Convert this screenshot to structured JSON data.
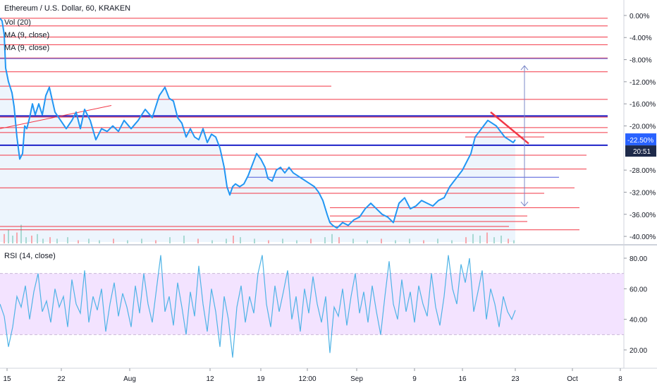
{
  "legend": {
    "title": "Ethereum / U.S. Dollar, 60, KRAKEN",
    "vol": "Vol (20)",
    "ma1": "MA (9, close)",
    "ma2": "MA (9, close)",
    "rsi": "RSI (14, close)"
  },
  "colors": {
    "price": "#2196f3",
    "hline": "#f23645",
    "blueline": "#1e22c8",
    "thinblue": "#4d58d8",
    "rsi": "#4fb3e6",
    "rsi_band": "#f3e3ff",
    "measure": "#7b88c8",
    "badge": "#2962ff"
  },
  "chart_data": [
    {
      "type": "line",
      "title": "Ethereum / U.S. Dollar, 60, KRAKEN",
      "x_ticks": [
        "15",
        "22",
        "Aug",
        "12",
        "19",
        "12:00",
        "Sep",
        "9",
        "16",
        "23",
        "Oct",
        "8"
      ],
      "y_ticks": [
        "0.00%",
        "-4.00%",
        "-8.00%",
        "-12.00%",
        "-16.00%",
        "-20.00%",
        "-24.00%",
        "-28.00%",
        "-32.00%",
        "-36.00%",
        "-40.00%"
      ],
      "ylim": [
        -40.5,
        0.5
      ],
      "y_unit": "%",
      "current_value_label": "-22.50%",
      "countdown_label": "20:51",
      "series": [
        {
          "key": "price",
          "x": [
            0,
            3,
            6,
            8,
            12,
            17,
            20,
            24,
            28,
            32,
            35,
            38,
            42,
            46,
            50,
            55,
            60,
            65,
            70,
            78,
            86,
            94,
            102,
            108,
            114,
            120,
            128,
            136,
            144,
            152,
            160,
            168,
            176,
            186,
            196,
            206,
            216,
            226,
            234,
            240,
            246,
            252,
            258,
            264,
            270,
            276,
            282,
            288,
            294,
            300,
            306,
            312,
            318,
            322,
            326,
            330,
            334,
            340,
            346,
            352,
            358,
            364,
            370,
            376,
            380,
            386,
            392,
            398,
            404,
            410,
            416,
            422,
            428,
            434,
            440,
            446,
            452,
            458,
            464,
            468,
            472,
            478,
            486,
            494,
            502,
            510,
            518,
            526,
            534,
            542,
            550,
            558,
            566,
            574,
            582,
            590,
            598,
            606,
            614,
            622,
            630,
            638,
            644,
            650,
            656,
            662,
            668,
            674,
            680,
            686,
            692,
            698,
            704,
            710,
            716,
            722,
            728,
            731
          ],
          "y": [
            -0.5,
            -1.0,
            -3.5,
            -9.5,
            -12.0,
            -14.0,
            -16.5,
            -22.0,
            -26.0,
            -25.0,
            -20.0,
            -20.5,
            -18.5,
            -16.0,
            -18.0,
            -16.0,
            -18.0,
            -14.5,
            -13.0,
            -17.5,
            -19.0,
            -20.5,
            -19.0,
            -17.5,
            -20.5,
            -17.0,
            -19.0,
            -22.5,
            -20.5,
            -21.0,
            -20.0,
            -21.0,
            -19.0,
            -20.5,
            -19.0,
            -17.0,
            -18.5,
            -14.5,
            -13.0,
            -15.0,
            -15.5,
            -18.5,
            -19.5,
            -22.0,
            -20.5,
            -22.0,
            -22.5,
            -20.5,
            -23.0,
            -21.5,
            -22.0,
            -24.0,
            -27.5,
            -31.0,
            -32.5,
            -31.0,
            -30.5,
            -31.0,
            -30.5,
            -29.0,
            -27.0,
            -25.0,
            -26.0,
            -27.5,
            -29.5,
            -30.0,
            -28.0,
            -27.5,
            -28.5,
            -27.5,
            -28.5,
            -29.0,
            -29.5,
            -30.0,
            -30.5,
            -31.0,
            -32.0,
            -33.5,
            -36.0,
            -37.5,
            -38.0,
            -38.5,
            -37.5,
            -38.0,
            -37.0,
            -36.5,
            -35.0,
            -34.0,
            -35.0,
            -36.0,
            -36.5,
            -37.5,
            -34.0,
            -33.0,
            -35.0,
            -34.5,
            -33.5,
            -34.0,
            -34.5,
            -33.5,
            -33.0,
            -31.0,
            -30.0,
            -29.0,
            -28.0,
            -26.5,
            -25.0,
            -22.0,
            -21.0,
            -20.0,
            -19.0,
            -19.5,
            -20.0,
            -21.0,
            -22.0,
            -22.5,
            -23.0,
            -22.5
          ]
        },
        {
          "key": "volume",
          "x": [
            5,
            11,
            17,
            23,
            29,
            36,
            44,
            52,
            60,
            70,
            80,
            95,
            110,
            125,
            140,
            160,
            180,
            200,
            220,
            240,
            260,
            280,
            300,
            320,
            330,
            340,
            360,
            380,
            400,
            420,
            440,
            460,
            470,
            480,
            500,
            520,
            540,
            560,
            580,
            600,
            620,
            640,
            660,
            670,
            680,
            690,
            700,
            710,
            720,
            728
          ],
          "y": [
            6,
            9,
            5,
            7,
            12,
            4,
            5,
            6,
            3,
            4,
            3,
            4,
            2,
            3,
            2,
            3,
            2,
            3,
            2,
            4,
            5,
            3,
            2,
            3,
            5,
            4,
            3,
            2,
            3,
            2,
            3,
            4,
            6,
            4,
            3,
            2,
            3,
            2,
            3,
            2,
            3,
            2,
            4,
            6,
            5,
            7,
            4,
            5,
            3,
            2
          ]
        }
      ],
      "horizontal_lines": [
        -0.5,
        -1.9,
        -3.9,
        -5.3,
        -7.7,
        -10.2,
        -12.8,
        -15.2,
        -18.4,
        -20.3,
        -21.2,
        -22.0,
        -25.3,
        -27.8,
        -31.2,
        -32.2,
        -34.8,
        -36.3,
        -37.3,
        -38.2,
        -38.8
      ],
      "blue_lines": [
        -18.2,
        -23.5
      ],
      "thin_blue_lines": [
        -7.8,
        -29.3
      ],
      "measure_range": [
        -9.1,
        -34.5
      ]
    },
    {
      "type": "line",
      "title": "RSI (14, close)",
      "y_ticks": [
        "80.00",
        "60.00",
        "40.00",
        "20.00"
      ],
      "ylim": [
        10,
        85
      ],
      "band": [
        30,
        70
      ],
      "series": [
        {
          "key": "rsi",
          "x": [
            0,
            6,
            12,
            18,
            24,
            30,
            36,
            42,
            48,
            54,
            60,
            66,
            72,
            78,
            84,
            90,
            96,
            102,
            108,
            114,
            120,
            126,
            132,
            138,
            144,
            150,
            156,
            162,
            168,
            174,
            180,
            186,
            192,
            198,
            204,
            210,
            216,
            222,
            228,
            234,
            240,
            246,
            252,
            258,
            264,
            270,
            276,
            282,
            288,
            294,
            300,
            306,
            312,
            318,
            324,
            330,
            336,
            342,
            348,
            354,
            360,
            366,
            372,
            378,
            384,
            390,
            396,
            402,
            408,
            414,
            420,
            426,
            432,
            438,
            444,
            450,
            456,
            462,
            468,
            474,
            480,
            486,
            492,
            498,
            504,
            510,
            516,
            522,
            528,
            534,
            540,
            546,
            552,
            558,
            564,
            570,
            576,
            582,
            588,
            594,
            600,
            606,
            612,
            618,
            624,
            630,
            636,
            642,
            648,
            654,
            660,
            666,
            672,
            678,
            684,
            690,
            696,
            702,
            708,
            714,
            720,
            726,
            731
          ],
          "y": [
            50,
            42,
            22,
            35,
            55,
            48,
            62,
            40,
            58,
            70,
            45,
            52,
            38,
            60,
            48,
            55,
            35,
            66,
            50,
            44,
            72,
            38,
            55,
            46,
            60,
            32,
            50,
            64,
            42,
            57,
            48,
            35,
            62,
            44,
            70,
            50,
            38,
            60,
            82,
            45,
            55,
            36,
            64,
            48,
            30,
            58,
            42,
            75,
            50,
            32,
            60,
            45,
            22,
            55,
            40,
            15,
            48,
            62,
            38,
            55,
            44,
            70,
            82,
            50,
            35,
            62,
            45,
            58,
            72,
            40,
            55,
            32,
            60,
            44,
            68,
            50,
            38,
            55,
            18,
            48,
            42,
            60,
            36,
            55,
            70,
            44,
            58,
            38,
            62,
            45,
            30,
            55,
            78,
            50,
            40,
            66,
            45,
            58,
            38,
            62,
            50,
            42,
            70,
            48,
            36,
            55,
            82,
            60,
            50,
            76,
            64,
            80,
            45,
            58,
            72,
            40,
            60,
            50,
            35,
            55,
            45,
            40,
            46
          ]
        }
      ]
    }
  ]
}
